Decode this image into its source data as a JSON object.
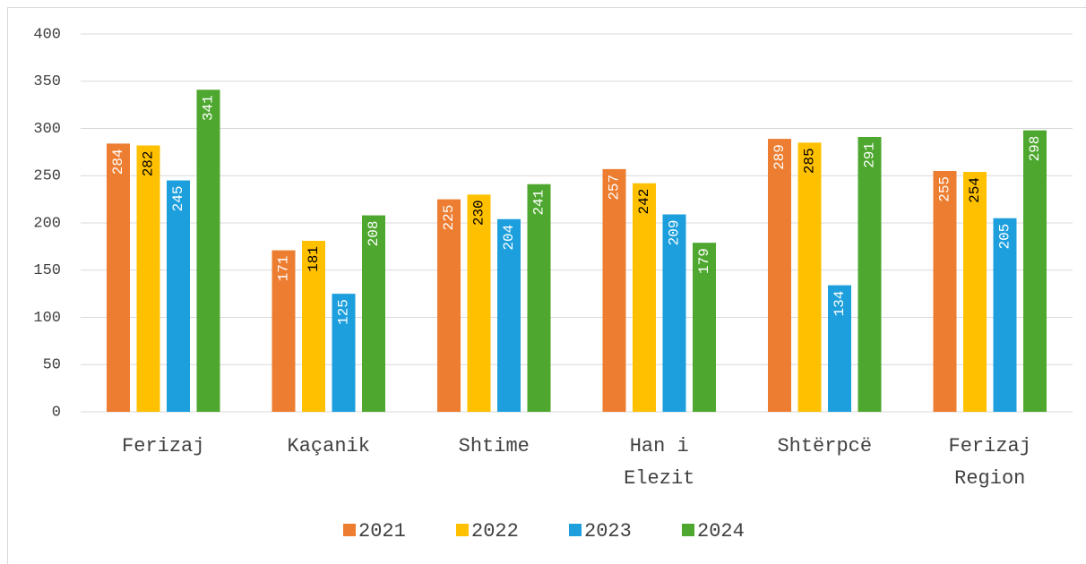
{
  "chart_data": {
    "type": "bar",
    "categories": [
      "Ferizaj",
      "Kaçanik",
      "Shtime",
      "Han i Elezit",
      "Shtërpcë",
      "Ferizaj Region"
    ],
    "series": [
      {
        "name": "2021",
        "color": "#ed7d31",
        "label_color": "#ffffff",
        "values": [
          284,
          171,
          225,
          257,
          289,
          255
        ]
      },
      {
        "name": "2022",
        "color": "#ffc000",
        "label_color": "#000000",
        "values": [
          282,
          181,
          230,
          242,
          285,
          254
        ]
      },
      {
        "name": "2023",
        "color": "#1c9fdc",
        "label_color": "#ffffff",
        "values": [
          245,
          125,
          204,
          209,
          134,
          205
        ]
      },
      {
        "name": "2024",
        "color": "#4ea72e",
        "label_color": "#ffffff",
        "values": [
          341,
          208,
          241,
          179,
          291,
          298
        ]
      }
    ],
    "ylim": [
      0,
      400
    ],
    "yticks": [
      0,
      50,
      100,
      150,
      200,
      250,
      300,
      350,
      400
    ],
    "grid": true,
    "legend": "bottom"
  }
}
